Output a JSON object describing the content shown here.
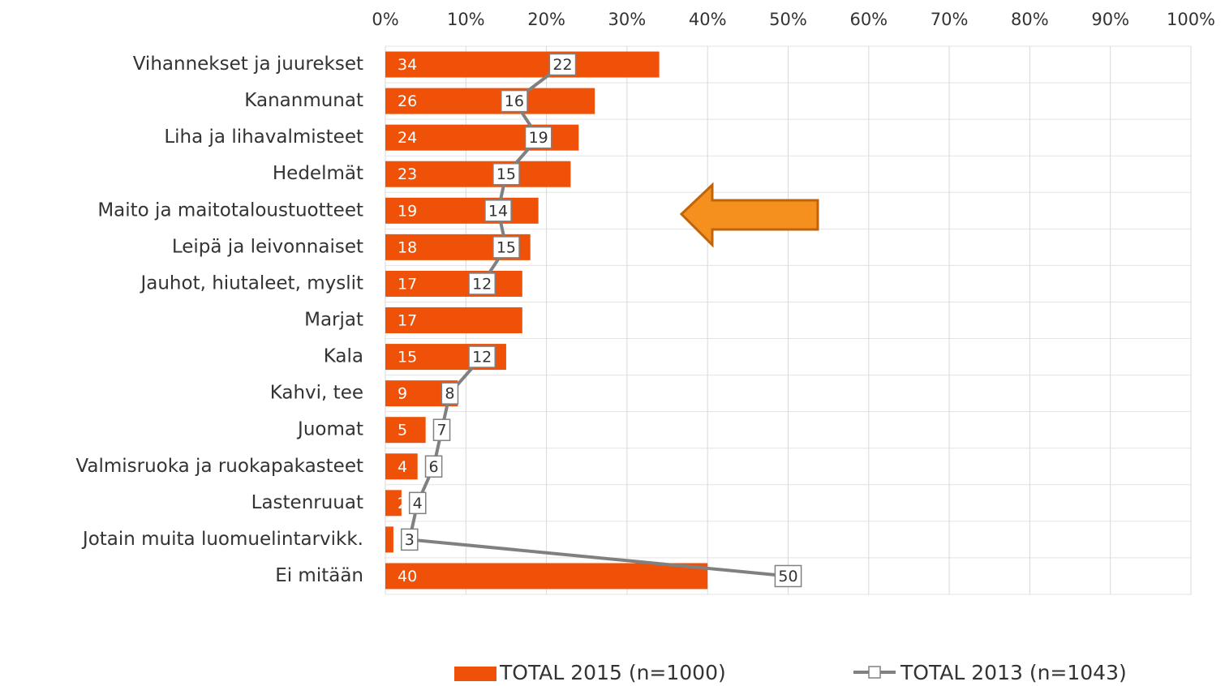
{
  "chart_data": {
    "type": "bar-line",
    "categories": [
      "Vihannekset ja juurekset",
      "Kananmunat",
      "Liha ja lihavalmisteet",
      "Hedelmät",
      "Maito ja maitotaloustuotteet",
      "Leipä ja leivonnaiset",
      "Jauhot, hiutaleet, myslit",
      "Marjat",
      "Kala",
      "Kahvi, tee",
      "Juomat",
      "Valmisruoka ja ruokapakasteet",
      "Lastenruuat",
      "Jotain muita luomuelintarvikk.",
      "Ei mitään"
    ],
    "series": [
      {
        "name": "TOTAL 2015 (n=1000)",
        "type": "bar",
        "color": "#f05108",
        "values": [
          34,
          26,
          24,
          23,
          19,
          18,
          17,
          17,
          15,
          9,
          5,
          4,
          2,
          1,
          40
        ],
        "value_labels": [
          "34",
          "26",
          "24",
          "23",
          "19",
          "18",
          "17",
          "17",
          "15",
          "9",
          "5",
          "4",
          "2",
          null,
          "40"
        ]
      },
      {
        "name": "TOTAL 2013 (n=1043)",
        "type": "line",
        "color": "#808080",
        "values": [
          22,
          16,
          19,
          15,
          14,
          15,
          12,
          null,
          12,
          8,
          7,
          6,
          4,
          3,
          50
        ]
      }
    ],
    "xlim": [
      0,
      100
    ],
    "xticks": [
      {
        "value": 0,
        "label": "0%"
      },
      {
        "value": 10,
        "label": "10%"
      },
      {
        "value": 20,
        "label": "20%"
      },
      {
        "value": 30,
        "label": "30%"
      },
      {
        "value": 40,
        "label": "40%"
      },
      {
        "value": 50,
        "label": "50%"
      },
      {
        "value": 60,
        "label": "60%"
      },
      {
        "value": 70,
        "label": "70%"
      },
      {
        "value": 80,
        "label": "80%"
      },
      {
        "value": 90,
        "label": "90%"
      },
      {
        "value": 100,
        "label": "100%"
      }
    ],
    "grid": true,
    "legend": "bottom"
  }
}
